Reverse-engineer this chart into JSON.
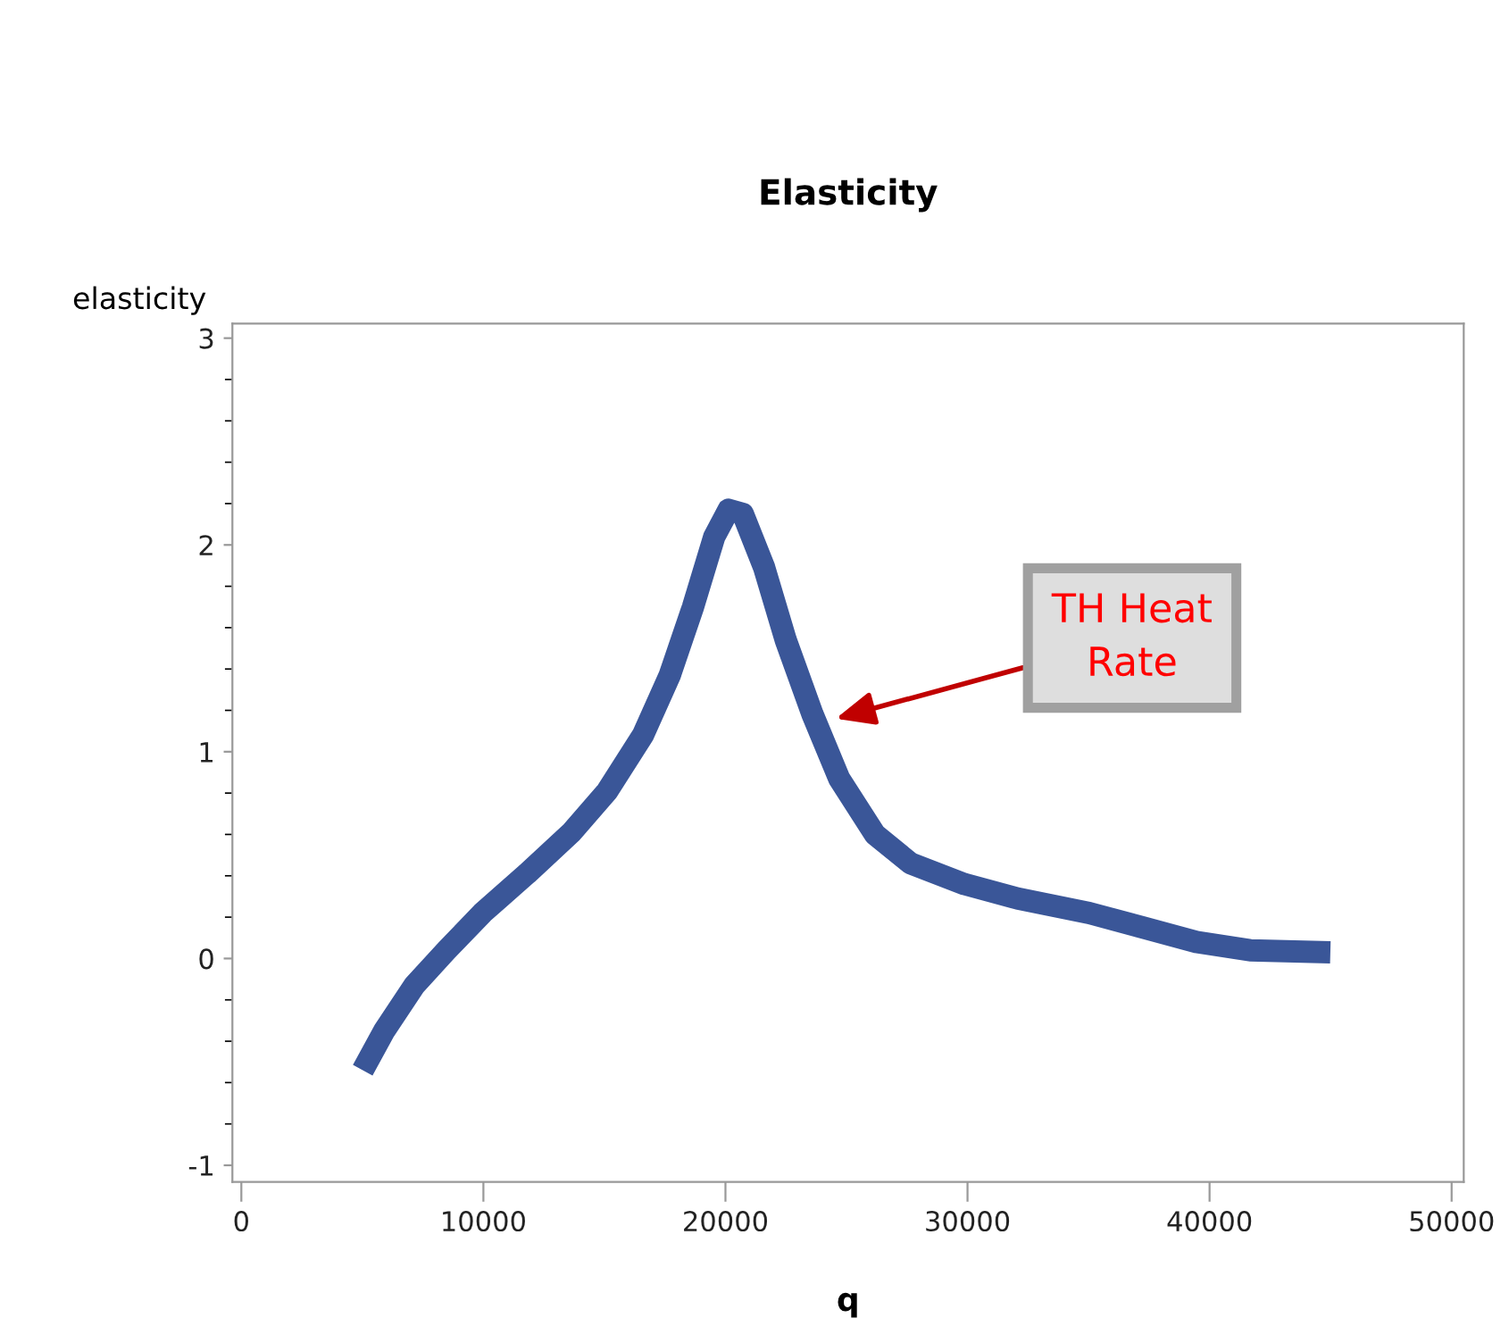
{
  "chart_data": {
    "type": "line",
    "title": "Elasticity",
    "xlabel": "q",
    "ylabel": "elasticity",
    "x": [
      5015,
      5900,
      7150,
      8480,
      9960,
      11800,
      13640,
      15120,
      16590,
      17700,
      18660,
      19540,
      20130,
      20720,
      21600,
      22490,
      23600,
      24700,
      26180,
      27650,
      29870,
      32080,
      35030,
      37240,
      39450,
      41670,
      44990
    ],
    "series": [
      {
        "color": "#3a5698",
        "values": [
          -0.54,
          -0.35,
          -0.13,
          0.04,
          0.22,
          0.41,
          0.61,
          0.81,
          1.08,
          1.37,
          1.7,
          2.04,
          2.17,
          2.15,
          1.89,
          1.54,
          1.18,
          0.87,
          0.6,
          0.46,
          0.36,
          0.29,
          0.22,
          0.15,
          0.08,
          0.04,
          0.03
        ]
      }
    ],
    "xlim": [
      -370,
      50500
    ],
    "xticks": [
      0,
      10000,
      20000,
      30000,
      40000,
      50000
    ],
    "ylim": [
      -1.08,
      3.07
    ],
    "yticks": [
      -1,
      0,
      1,
      2,
      3
    ],
    "annotations": [
      {
        "text": "TH Heat\nRate",
        "x": 24560,
        "y": 1.16
      }
    ],
    "grid": false,
    "marker": "none",
    "line_style": "solid"
  }
}
